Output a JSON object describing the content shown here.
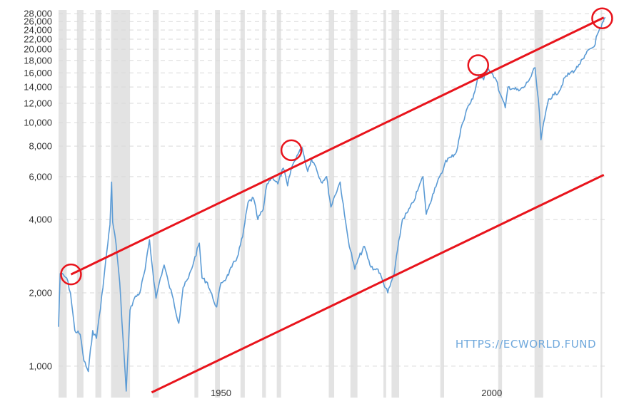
{
  "chart_data": {
    "type": "line",
    "title": "",
    "xlabel": "",
    "ylabel": "",
    "yscale": "log",
    "ylim": [
      850,
      29000
    ],
    "xlim": [
      1920,
      2021
    ],
    "grid": "horizontal dashed",
    "y_ticks": [
      {
        "value": 1000,
        "label": "1,000"
      },
      {
        "value": 2000,
        "label": "2,000"
      },
      {
        "value": 4000,
        "label": "4,000"
      },
      {
        "value": 6000,
        "label": "6,000"
      },
      {
        "value": 8000,
        "label": "8,000"
      },
      {
        "value": 10000,
        "label": "10,000"
      },
      {
        "value": 12000,
        "label": "12,000"
      },
      {
        "value": 14000,
        "label": "14,000"
      },
      {
        "value": 16000,
        "label": "16,000"
      },
      {
        "value": 18000,
        "label": "18,000"
      },
      {
        "value": 20000,
        "label": "20,000"
      },
      {
        "value": 22000,
        "label": "22,000"
      },
      {
        "value": 24000,
        "label": "24,000"
      },
      {
        "value": 26000,
        "label": "26,000"
      },
      {
        "value": 28000,
        "label": "28,000"
      }
    ],
    "x_ticks": [
      {
        "value": 1950,
        "label": "1950"
      },
      {
        "value": 2000,
        "label": "2000"
      }
    ],
    "recessions": [
      [
        1920.0,
        1921.5
      ],
      [
        1923.4,
        1924.6
      ],
      [
        1926.8,
        1927.9
      ],
      [
        1929.7,
        1933.2
      ],
      [
        1937.4,
        1938.5
      ],
      [
        1945.1,
        1945.8
      ],
      [
        1948.9,
        1949.8
      ],
      [
        1953.6,
        1954.4
      ],
      [
        1957.6,
        1958.3
      ],
      [
        1960.3,
        1961.1
      ],
      [
        1969.9,
        1970.9
      ],
      [
        1973.9,
        1975.2
      ],
      [
        1980.0,
        1980.5
      ],
      [
        1981.5,
        1982.9
      ],
      [
        1990.5,
        1991.2
      ],
      [
        2001.2,
        2001.9
      ],
      [
        2007.9,
        2009.5
      ],
      [
        2020.1,
        2020.4
      ]
    ],
    "series": [
      {
        "color": "#5b9bd5",
        "x": [
          1920.0,
          1920.3,
          1921.5,
          1922.2,
          1923.0,
          1924.0,
          1924.7,
          1925.5,
          1926.3,
          1927.0,
          1927.5,
          1928.2,
          1928.7,
          1929.5,
          1929.8,
          1930.0,
          1930.6,
          1931.3,
          1931.9,
          1932.5,
          1933.2,
          1934.0,
          1935.0,
          1936.0,
          1936.8,
          1937.2,
          1938.0,
          1938.8,
          1939.5,
          1940.3,
          1941.0,
          1942.2,
          1943.0,
          1944.0,
          1945.0,
          1946.0,
          1946.5,
          1947.5,
          1948.5,
          1949.2,
          1950.0,
          1951.0,
          1952.0,
          1953.0,
          1954.0,
          1955.0,
          1956.0,
          1956.8,
          1957.8,
          1958.5,
          1959.5,
          1960.5,
          1961.5,
          1962.3,
          1963.0,
          1964.0,
          1965.0,
          1966.0,
          1966.7,
          1967.5,
          1968.5,
          1969.5,
          1970.3,
          1971.0,
          1972.0,
          1972.8,
          1973.5,
          1974.7,
          1975.5,
          1976.5,
          1977.5,
          1978.3,
          1979.0,
          1980.0,
          1980.8,
          1982.0,
          1982.6,
          1983.5,
          1984.5,
          1985.5,
          1986.5,
          1987.3,
          1987.9,
          1988.5,
          1989.5,
          1990.8,
          1991.5,
          1992.5,
          1993.5,
          1994.5,
          1995.5,
          1996.5,
          1997.5,
          1998.5,
          1999.3,
          2000.0,
          2000.8,
          2001.5,
          2002.5,
          2003.0,
          2004.0,
          2005.0,
          2006.0,
          2007.3,
          2008.0,
          2008.8,
          2009.1,
          2009.8,
          2010.5,
          2011.5,
          2012.5,
          2013.5,
          2014.5,
          2015.5,
          2016.1,
          2017.0,
          2018.0,
          2018.9,
          2019.5,
          2020.2,
          2020.6,
          2021.0
        ],
        "y": [
          1450,
          2400,
          2300,
          2000,
          1400,
          1350,
          1050,
          950,
          1400,
          1300,
          1600,
          2100,
          2700,
          3800,
          5700,
          3900,
          3200,
          2200,
          1300,
          790,
          1700,
          1900,
          2000,
          2500,
          3300,
          2700,
          1900,
          2300,
          2600,
          2200,
          1950,
          1500,
          2100,
          2300,
          2700,
          3200,
          2300,
          2200,
          1900,
          1750,
          2200,
          2300,
          2550,
          2800,
          3400,
          4700,
          4900,
          4000,
          4400,
          5600,
          6000,
          5600,
          6500,
          5500,
          6500,
          7300,
          7900,
          6300,
          7100,
          6600,
          5700,
          6000,
          4500,
          5000,
          5700,
          4200,
          3300,
          2500,
          2800,
          3100,
          2600,
          2500,
          2500,
          2200,
          2000,
          2400,
          3000,
          4000,
          4300,
          4700,
          5400,
          6000,
          4200,
          4600,
          5400,
          6200,
          7000,
          7200,
          7600,
          9800,
          11500,
          12500,
          15500,
          15000,
          16800,
          16000,
          15000,
          13200,
          11500,
          14000,
          13800,
          13500,
          14000,
          15500,
          16800,
          11000,
          8500,
          10500,
          12500,
          13000,
          13500,
          15300,
          16000,
          16500,
          17300,
          18300,
          20000,
          20500,
          23000,
          24500,
          26000,
          27000
        ]
      }
    ],
    "trendlines": [
      {
        "x": [
          1922.3,
          2020.7
        ],
        "y": [
          2380,
          27000
        ]
      },
      {
        "x": [
          1937.2,
          2020.7
        ],
        "y": [
          780,
          6100
        ]
      }
    ],
    "circled_points": [
      {
        "x": 1922.3,
        "y": 2380
      },
      {
        "x": 1963.0,
        "y": 7700
      },
      {
        "x": 1997.5,
        "y": 17200
      },
      {
        "x": 2020.4,
        "y": 26800
      }
    ],
    "watermark": "HTTPS://ECWORLD.FUND"
  }
}
